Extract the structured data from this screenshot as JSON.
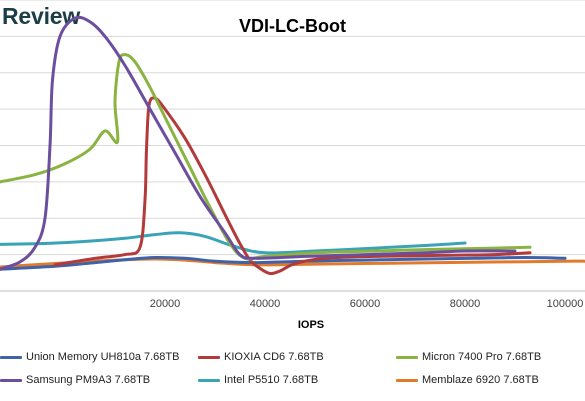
{
  "watermark": "Review",
  "chart_data": {
    "type": "line",
    "title": "VDI-LC-Boot",
    "xlabel": "IOPS",
    "ylabel": "",
    "xlim": [
      -13000,
      104000
    ],
    "ylim": [
      0,
      8
    ],
    "xticks": [
      20000,
      40000,
      60000,
      80000,
      100000
    ],
    "xtick_labels": [
      "20000",
      "40000",
      "60000",
      "80000",
      "100000"
    ],
    "yticks": [
      1,
      2,
      3,
      4,
      5,
      6,
      7,
      8
    ],
    "grid": true,
    "legend_position": "bottom",
    "series": [
      {
        "name": "Union Memory UH810a 7.68TB",
        "color": "#3f62a8",
        "points": [
          [
            -13000,
            0.6
          ],
          [
            -2000,
            0.68
          ],
          [
            6000,
            0.78
          ],
          [
            12000,
            0.86
          ],
          [
            18000,
            0.92
          ],
          [
            24000,
            0.9
          ],
          [
            30000,
            0.82
          ],
          [
            38000,
            0.78
          ],
          [
            48000,
            0.82
          ],
          [
            60000,
            0.85
          ],
          [
            72000,
            0.88
          ],
          [
            82000,
            0.9
          ],
          [
            92000,
            0.92
          ],
          [
            100000,
            0.9
          ]
        ]
      },
      {
        "name": "KIOXIA CD6 7.68TB",
        "color": "#b33a3a",
        "points": [
          [
            -2000,
            0.72
          ],
          [
            6000,
            0.9
          ],
          [
            12000,
            1.0
          ],
          [
            15000,
            1.2
          ],
          [
            16000,
            2.5
          ],
          [
            16300,
            3.9
          ],
          [
            16800,
            5.1
          ],
          [
            18000,
            5.3
          ],
          [
            20000,
            5.0
          ],
          [
            24000,
            4.2
          ],
          [
            28000,
            3.2
          ],
          [
            32000,
            2.1
          ],
          [
            35000,
            1.3
          ],
          [
            37000,
            0.85
          ],
          [
            39000,
            0.62
          ],
          [
            41000,
            0.48
          ],
          [
            43000,
            0.55
          ],
          [
            46000,
            0.75
          ],
          [
            52000,
            0.9
          ],
          [
            62000,
            0.95
          ],
          [
            75000,
            0.98
          ],
          [
            86000,
            1.0
          ],
          [
            93000,
            1.05
          ]
        ]
      },
      {
        "name": "Micron 7400 Pro 7.68TB",
        "color": "#8ab342",
        "points": [
          [
            -13000,
            3.0
          ],
          [
            -6000,
            3.2
          ],
          [
            0,
            3.5
          ],
          [
            5000,
            3.9
          ],
          [
            8000,
            4.4
          ],
          [
            10500,
            4.1
          ],
          [
            10000,
            5.2
          ],
          [
            10800,
            6.3
          ],
          [
            12000,
            6.5
          ],
          [
            14000,
            6.3
          ],
          [
            17000,
            5.6
          ],
          [
            21000,
            4.5
          ],
          [
            25000,
            3.4
          ],
          [
            29000,
            2.3
          ],
          [
            33000,
            1.3
          ],
          [
            36000,
            0.9
          ],
          [
            40000,
            0.95
          ],
          [
            50000,
            1.05
          ],
          [
            62000,
            1.1
          ],
          [
            75000,
            1.15
          ],
          [
            86000,
            1.18
          ],
          [
            93000,
            1.2
          ]
        ]
      },
      {
        "name": "Samsung PM9A3 7.68TB",
        "color": "#6b4e9e",
        "points": [
          [
            -13000,
            0.6
          ],
          [
            -9000,
            0.8
          ],
          [
            -6000,
            1.2
          ],
          [
            -4000,
            2.0
          ],
          [
            -3000,
            4.0
          ],
          [
            -2500,
            5.8
          ],
          [
            -1000,
            7.0
          ],
          [
            2000,
            7.5
          ],
          [
            5000,
            7.4
          ],
          [
            8000,
            7.0
          ],
          [
            12000,
            6.2
          ],
          [
            17000,
            5.0
          ],
          [
            22000,
            3.8
          ],
          [
            27000,
            2.6
          ],
          [
            32000,
            1.6
          ],
          [
            35000,
            1.0
          ],
          [
            38000,
            0.9
          ],
          [
            48000,
            0.95
          ],
          [
            60000,
            1.0
          ],
          [
            72000,
            1.05
          ],
          [
            80000,
            1.1
          ],
          [
            90000,
            1.1
          ]
        ]
      },
      {
        "name": "Intel P5510 7.68TB",
        "color": "#3aa3b5",
        "points": [
          [
            -13000,
            1.28
          ],
          [
            -6000,
            1.3
          ],
          [
            0,
            1.33
          ],
          [
            6000,
            1.38
          ],
          [
            12000,
            1.45
          ],
          [
            18000,
            1.55
          ],
          [
            23000,
            1.6
          ],
          [
            28000,
            1.5
          ],
          [
            34000,
            1.22
          ],
          [
            40000,
            1.05
          ],
          [
            50000,
            1.1
          ],
          [
            62000,
            1.18
          ],
          [
            72000,
            1.25
          ],
          [
            80000,
            1.32
          ]
        ]
      },
      {
        "name": "Memblaze 6920 7.68TB",
        "color": "#e07b2e",
        "points": [
          [
            -13000,
            0.66
          ],
          [
            -4000,
            0.74
          ],
          [
            6000,
            0.82
          ],
          [
            12000,
            0.86
          ],
          [
            18000,
            0.88
          ],
          [
            24000,
            0.85
          ],
          [
            30000,
            0.78
          ],
          [
            38000,
            0.72
          ],
          [
            50000,
            0.74
          ],
          [
            62000,
            0.76
          ],
          [
            75000,
            0.78
          ],
          [
            88000,
            0.8
          ],
          [
            100000,
            0.82
          ],
          [
            104000,
            0.82
          ]
        ]
      }
    ]
  }
}
